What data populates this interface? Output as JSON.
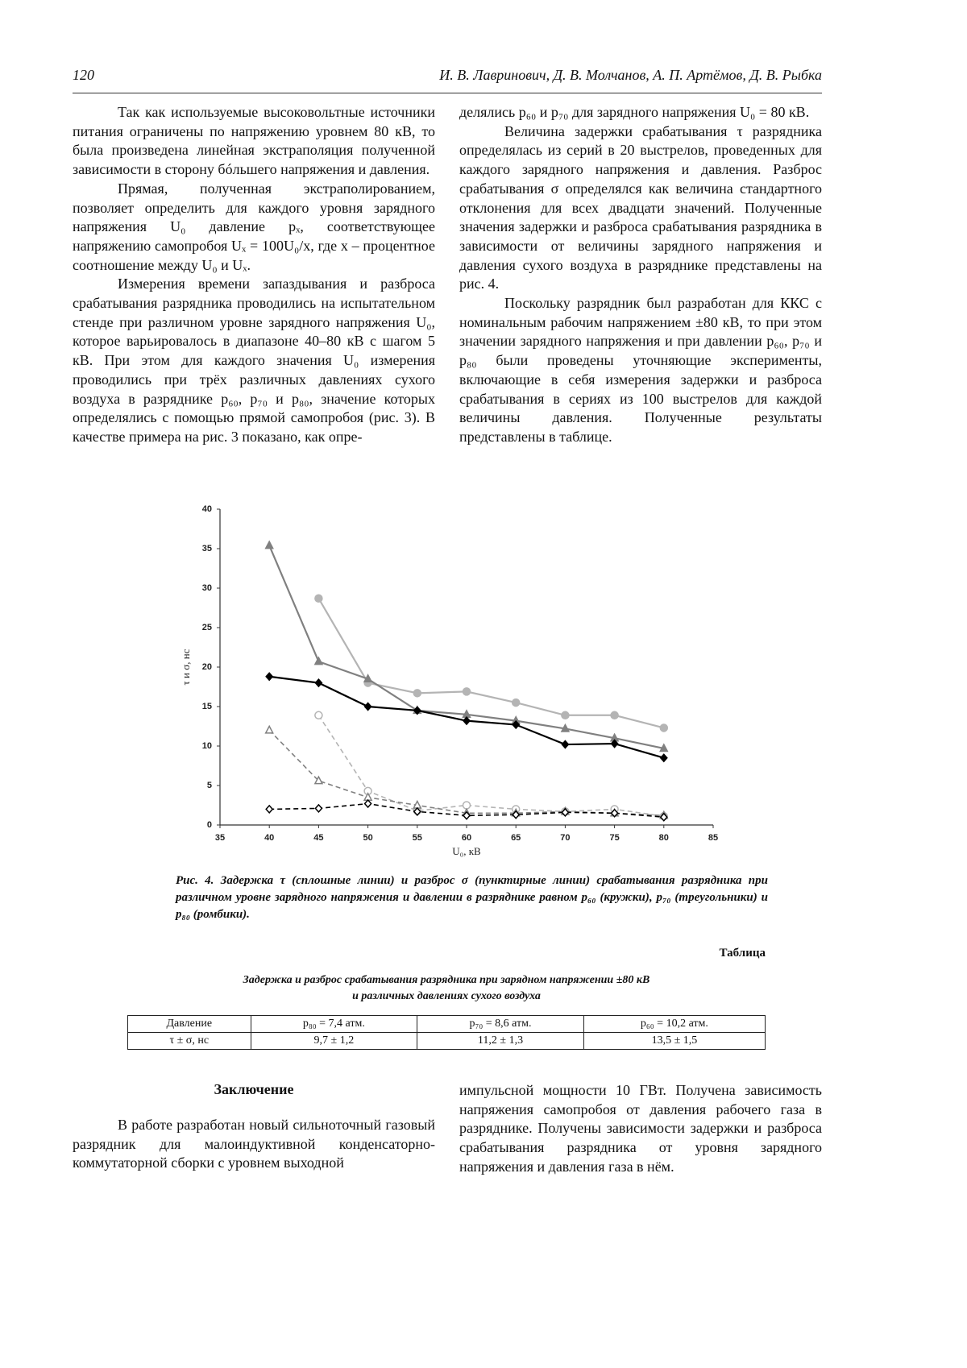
{
  "header": {
    "page_number": "120",
    "authors": "И. В. Лавринович, Д. В. Молчанов, А. П. Артёмов, Д. В. Рыбка"
  },
  "body": {
    "left": [
      "Так как используемые высоковольтные источники питания ограничены по напряжению уровнем 80 кВ, то была произведена линейная экстраполяция полученной зависимости в сторону бóльшего напряжения и давления.",
      "Прямая, полученная экстраполированием, позволяет определить для каждого уровня зарядного напряжения U₀ давление pₓ, соответствующее напряжению самопробоя Uₓ = 100U₀/x, где x – процентное соотношение между U₀ и Uₓ.",
      "Измерения времени запаздывания и разброса срабатывания разрядника проводились на испытательном стенде при различном уровне зарядного напряжения U₀, которое варьировалось в диапазоне 40–80 кВ с шагом 5 кВ. При этом для каждого значения U₀ измерения проводились при трёх различных давлениях сухого воздуха в разряднике p₆₀, p₇₀ и p₈₀, значение которых определялись с помощью прямой самопробоя (рис. 3). В качестве примера на рис. 3 показано, как опре-"
    ],
    "right": [
      "делялись p₆₀ и p₇₀ для зарядного напряжения U₀ = 80 кВ.",
      "Величина задержки срабатывания τ разрядника определялась из серий в 20 выстрелов, проведенных для каждого зарядного напряжения и давления. Разброс срабатывания σ определялся как величина стандартного отклонения для всех двадцати значений. Полученные значения задержки и разброса срабатывания разрядника в зависимости от величины зарядного напряжения и давления сухого воздуха в разряднике представлены на рис. 4.",
      "Поскольку разрядник был разработан для ККС с номинальным рабочим напряжением ±80 кВ, то при этом значении зарядного напряжения и при давлении p₆₀, p₇₀ и p₈₀ были проведены уточняющие эксперименты, включающие в себя измерения задержки и разброса срабатывания в сериях из 100 выстрелов для каждой величины давления. Полученные результаты представлены в таблице."
    ]
  },
  "chart_data": {
    "type": "line",
    "x": [
      40,
      45,
      50,
      55,
      60,
      65,
      70,
      75,
      80
    ],
    "xlim": [
      35,
      85
    ],
    "xticks": [
      35,
      40,
      45,
      50,
      55,
      60,
      65,
      70,
      75,
      80,
      85
    ],
    "ylim": [
      0,
      40
    ],
    "yticks": [
      0,
      5,
      10,
      15,
      20,
      25,
      30,
      35,
      40
    ],
    "x_label": "U₀, кВ",
    "y_label": "τ и σ, нс",
    "series": [
      {
        "color": "#b4b4b4",
        "marker": "circle",
        "filled": true,
        "dashed": false,
        "values": [
          null,
          28.7,
          18.0,
          16.7,
          16.9,
          15.5,
          13.9,
          13.9,
          12.3
        ]
      },
      {
        "color": "#808080",
        "marker": "triangle",
        "filled": true,
        "dashed": false,
        "values": [
          35.4,
          20.7,
          18.5,
          14.5,
          14.0,
          13.2,
          12.2,
          11.0,
          9.7
        ]
      },
      {
        "color": "#000000",
        "marker": "diamond",
        "filled": true,
        "dashed": false,
        "values": [
          18.8,
          18.0,
          15.0,
          14.5,
          13.2,
          12.7,
          10.2,
          10.3,
          8.5
        ]
      },
      {
        "color": "#b4b4b4",
        "marker": "circle",
        "filled": false,
        "dashed": true,
        "values": [
          null,
          13.9,
          4.3,
          1.8,
          2.5,
          2.0,
          1.7,
          2.0,
          1.1
        ]
      },
      {
        "color": "#808080",
        "marker": "triangle",
        "filled": false,
        "dashed": true,
        "values": [
          12.0,
          5.6,
          3.5,
          2.5,
          1.5,
          1.5,
          1.7,
          1.5,
          1.2
        ]
      },
      {
        "color": "#000000",
        "marker": "diamond",
        "filled": false,
        "dashed": true,
        "values": [
          2.0,
          2.1,
          2.7,
          1.7,
          1.2,
          1.3,
          1.6,
          1.5,
          1.0
        ]
      }
    ]
  },
  "figure_caption": "Рис. 4. Задержка τ (сплошные линии) и разброс σ (пунктирные линии) срабатывания разрядника при различном уровне зарядного напряжения и давлении в разряднике равном p₆₀ (кружки), p₇₀ (треугольники) и p₈₀ (ромбики).",
  "table": {
    "label": "Таблица",
    "title": [
      "Задержка и разброс срабатывания разрядника при зарядном напряжении ±80 кВ",
      "и различных давлениях сухого воздуха"
    ],
    "rows": [
      [
        "Давление",
        "p₈₀ = 7,4 атм.",
        "p₇₀ = 8,6 атм.",
        "p₆₀ = 10,2 атм."
      ],
      [
        "τ ± σ, нс",
        "9,7 ± 1,2",
        "11,2 ± 1,3",
        "13,5 ± 1,5"
      ]
    ]
  },
  "conclusion": {
    "heading": "Заключение",
    "left": "В работе разработан новый сильноточный газовый разрядник для малоиндуктивной конденсаторно-коммутаторной сборки с уровнем выходной",
    "right": "импульсной мощности 10 ГВт. Получена зависимость напряжения самопробоя от давления рабочего газа в разряднике. Получены зависимости задержки и разброса срабатывания разрядника от уровня зарядного напряжения и давления газа в нём."
  }
}
